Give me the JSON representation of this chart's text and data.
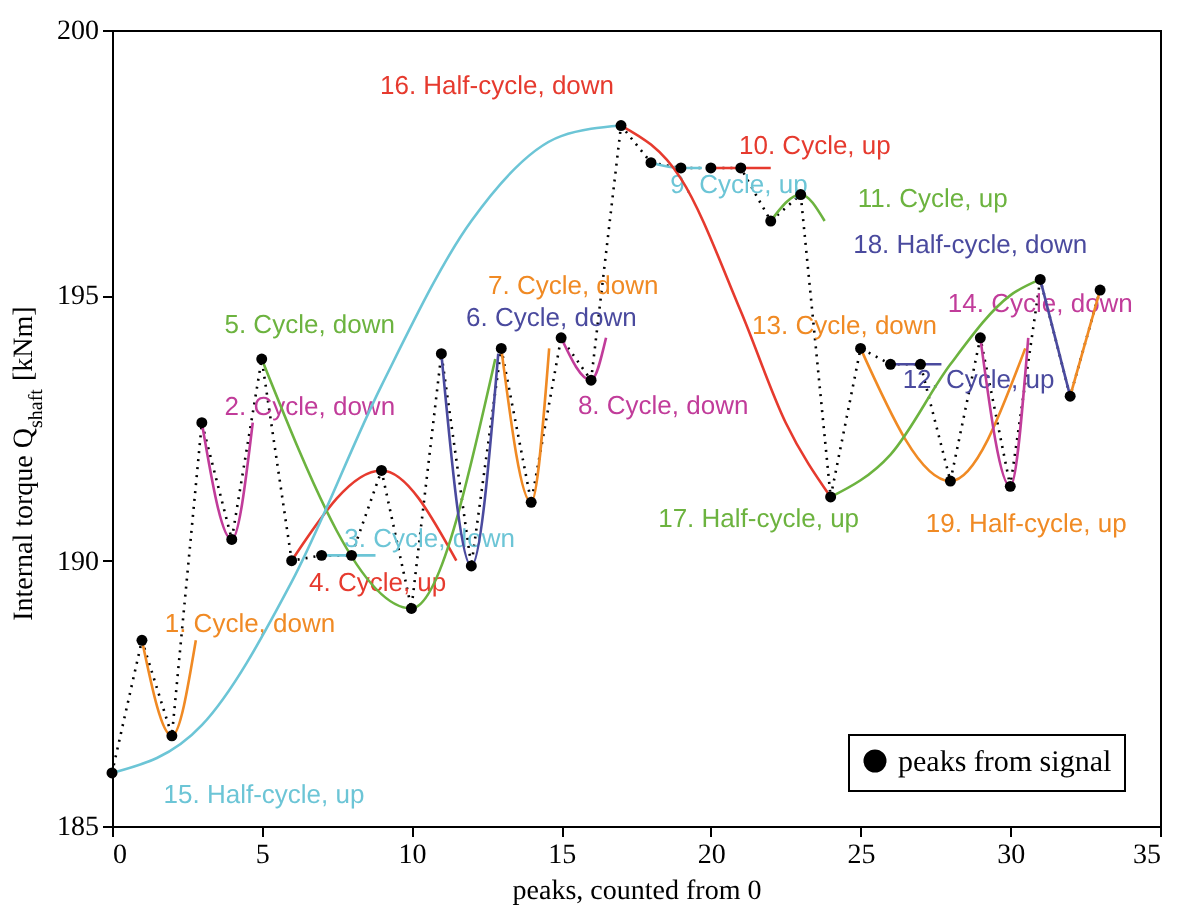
{
  "chart_data": {
    "type": "line",
    "xlabel": "peaks, counted from 0",
    "ylabel": "Internal torque Q$_{shaft}$ [kNm]",
    "xlim": [
      0,
      35
    ],
    "ylim": [
      185,
      200
    ],
    "xticks": [
      0,
      5,
      10,
      15,
      20,
      25,
      30,
      35
    ],
    "yticks": [
      185,
      190,
      195,
      200
    ],
    "grid": false,
    "legend": "bottom right",
    "series": [
      {
        "name": "peaks from signal",
        "color": "#000000",
        "line_style": "dotted",
        "marker": "circle",
        "x": [
          0,
          1,
          2,
          3,
          4,
          5,
          6,
          7,
          8,
          9,
          10,
          11,
          12,
          13,
          14,
          15,
          16,
          17,
          18,
          19,
          20,
          21,
          22,
          23,
          24,
          25,
          26,
          27,
          28,
          29,
          30,
          31,
          32,
          33
        ],
        "values": [
          186.0,
          188.5,
          186.7,
          192.6,
          190.4,
          193.8,
          190.0,
          190.1,
          190.1,
          191.7,
          189.1,
          193.9,
          189.9,
          194.0,
          191.1,
          194.2,
          193.4,
          198.2,
          197.5,
          197.4,
          197.4,
          197.4,
          196.4,
          196.9,
          191.2,
          194.0,
          193.7,
          193.7,
          191.5,
          194.2,
          191.4,
          195.3,
          193.1,
          195.1
        ]
      },
      {
        "name": "1. Cycle, down",
        "color": "#f08a24",
        "line_style": "solid",
        "marker": "none",
        "x": [
          1,
          2,
          2.8
        ],
        "values": [
          188.5,
          186.7,
          188.5
        ]
      },
      {
        "name": "2. Cycle, down",
        "color": "#c13c9a",
        "line_style": "solid",
        "marker": "none",
        "x": [
          3,
          4,
          4.7
        ],
        "values": [
          192.6,
          190.4,
          192.6
        ]
      },
      {
        "name": "3. Cycle, down",
        "color": "#6cc5d6",
        "line_style": "solid",
        "marker": "none",
        "x": [
          7,
          8,
          8.8
        ],
        "values": [
          190.1,
          190.1,
          190.1
        ]
      },
      {
        "name": "4. Cycle, up",
        "color": "#e63a2e",
        "line_style": "solid",
        "marker": "none",
        "x": [
          6,
          9,
          11.5
        ],
        "values": [
          190.0,
          191.7,
          190.0
        ]
      },
      {
        "name": "5. Cycle, down",
        "color": "#6cb33f",
        "line_style": "solid",
        "marker": "none",
        "x": [
          5,
          10,
          12.8
        ],
        "values": [
          193.8,
          189.1,
          193.8
        ]
      },
      {
        "name": "6. Cycle, down",
        "color": "#4a4a9e",
        "line_style": "solid",
        "marker": "none",
        "x": [
          11,
          12,
          12.9
        ],
        "values": [
          193.9,
          189.9,
          193.9
        ]
      },
      {
        "name": "7. Cycle, down",
        "color": "#f08a24",
        "line_style": "solid",
        "marker": "none",
        "x": [
          13,
          14,
          14.6
        ],
        "values": [
          194.0,
          191.1,
          194.0
        ]
      },
      {
        "name": "8. Cycle, down",
        "color": "#c13c9a",
        "line_style": "solid",
        "marker": "none",
        "x": [
          15,
          16,
          16.5
        ],
        "values": [
          194.2,
          193.4,
          194.2
        ]
      },
      {
        "name": "9. Cycle, up",
        "color": "#6cc5d6",
        "line_style": "solid",
        "marker": "none",
        "x": [
          18,
          19,
          19.7
        ],
        "values": [
          197.5,
          197.4,
          197.4
        ]
      },
      {
        "name": "10. Cycle, up",
        "color": "#e63a2e",
        "line_style": "solid",
        "marker": "none",
        "x": [
          20,
          21,
          22
        ],
        "values": [
          197.4,
          197.4,
          197.4
        ]
      },
      {
        "name": "11. Cycle, up",
        "color": "#6cb33f",
        "line_style": "solid",
        "marker": "none",
        "x": [
          22,
          23,
          23.8
        ],
        "values": [
          196.4,
          196.9,
          196.4
        ]
      },
      {
        "name": "12. Cycle, up",
        "color": "#4a4a9e",
        "line_style": "solid",
        "marker": "none",
        "x": [
          26,
          27,
          27.7
        ],
        "values": [
          193.7,
          193.7,
          193.7
        ]
      },
      {
        "name": "13. Cycle, down",
        "color": "#f08a24",
        "line_style": "solid",
        "marker": "none",
        "x": [
          25,
          28,
          30.5
        ],
        "values": [
          194.0,
          191.5,
          194.0
        ]
      },
      {
        "name": "14. Cycle, down",
        "color": "#c13c9a",
        "line_style": "solid",
        "marker": "none",
        "x": [
          29,
          30,
          30.6
        ],
        "values": [
          194.2,
          191.4,
          194.2
        ]
      },
      {
        "name": "15. Half-cycle, up",
        "color": "#6cc5d6",
        "line_style": "solid",
        "marker": "none",
        "x": [
          0,
          3,
          6,
          9,
          12,
          15,
          17
        ],
        "values": [
          186.0,
          186.9,
          189.6,
          193.3,
          196.4,
          198.0,
          198.2
        ]
      },
      {
        "name": "16. Half-cycle, down",
        "color": "#e63a2e",
        "line_style": "solid",
        "marker": "none",
        "x": [
          17,
          19,
          21,
          22.5,
          24
        ],
        "values": [
          198.2,
          197.2,
          194.7,
          192.6,
          191.2
        ]
      },
      {
        "name": "17. Half-cycle, up",
        "color": "#6cb33f",
        "line_style": "solid",
        "marker": "none",
        "x": [
          24,
          26,
          28,
          30,
          31
        ],
        "values": [
          191.2,
          192.0,
          193.7,
          195.0,
          195.3
        ]
      },
      {
        "name": "18. Half-cycle, down",
        "color": "#4a4a9e",
        "line_style": "solid",
        "marker": "none",
        "x": [
          31,
          32
        ],
        "values": [
          195.3,
          193.1
        ]
      },
      {
        "name": "19. Half-cycle, up",
        "color": "#f08a24",
        "line_style": "solid",
        "marker": "none",
        "x": [
          32,
          33
        ],
        "values": [
          193.1,
          195.1
        ]
      }
    ]
  }
}
